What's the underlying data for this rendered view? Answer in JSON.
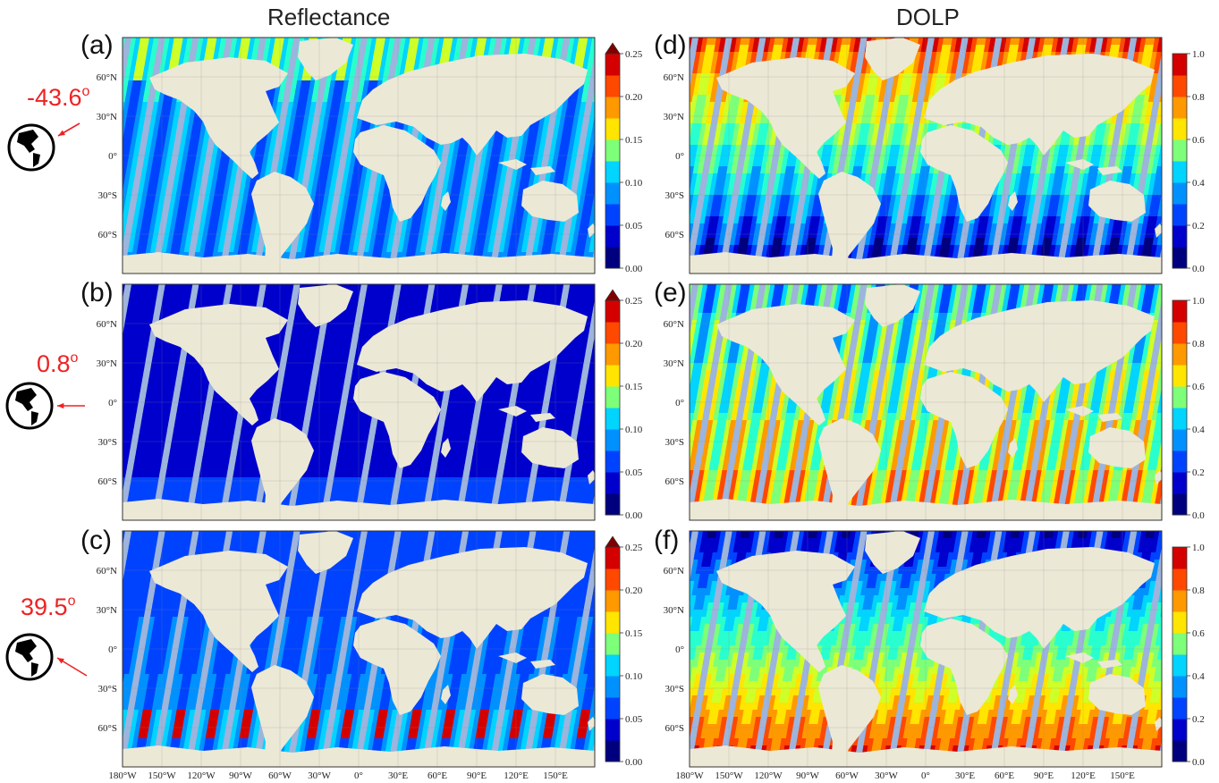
{
  "columns": [
    {
      "title": "Reflectance"
    },
    {
      "title": "DOLP"
    }
  ],
  "panel_labels": [
    "(a)",
    "(b)",
    "(c)",
    "(d)",
    "(e)",
    "(f)"
  ],
  "viewing_angles": [
    {
      "value": "-43.6",
      "unit": "o"
    },
    {
      "value": "0.8",
      "unit": "o"
    },
    {
      "value": "39.5",
      "unit": "o"
    }
  ],
  "globe_icon": "globe-americas-icon",
  "lat_ticks": [
    "60°N",
    "30°N",
    "0°",
    "30°S",
    "60°S"
  ],
  "lon_ticks": [
    "180°W",
    "150°W",
    "120°W",
    "90°W",
    "60°W",
    "30°W",
    "0°",
    "30°E",
    "60°E",
    "90°E",
    "120°E",
    "150°E"
  ],
  "colorbars": {
    "reflectance": {
      "ticks": [
        "0.25",
        "0.20",
        "0.15",
        "0.10",
        "0.05",
        "0.00"
      ],
      "extend": "max"
    },
    "dolp": {
      "ticks": [
        "1.0",
        "0.8",
        "0.6",
        "0.4",
        "0.2",
        "0.0"
      ],
      "extend": "none"
    }
  },
  "palette": [
    "#00007f",
    "#0000cc",
    "#0043ff",
    "#0091ff",
    "#00d4ff",
    "#29ffce",
    "#7dff7a",
    "#ceff29",
    "#ffe500",
    "#ff9900",
    "#ff4800",
    "#d40000",
    "#7f0000"
  ],
  "colors": {
    "land": "#ece8d6",
    "no_data": "#9db4dc",
    "annotation": "#ee2222"
  }
}
